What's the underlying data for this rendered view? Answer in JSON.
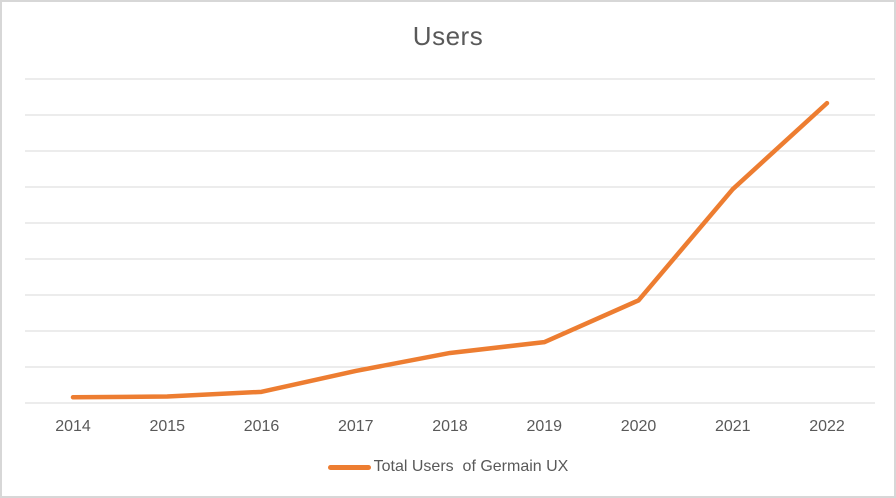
{
  "window": {
    "background": "#ffffff",
    "border_color": "#d7d7d7"
  },
  "chart_data": {
    "type": "line",
    "title": "Users",
    "categories": [
      "2014",
      "2015",
      "2016",
      "2017",
      "2018",
      "2019",
      "2020",
      "2021",
      "2022"
    ],
    "series": [
      {
        "name": "Total Users  of Germain UX",
        "values": [
          0.16,
          0.18,
          0.31,
          0.89,
          1.39,
          1.69,
          2.85,
          5.94,
          8.33
        ],
        "color": "#ED7D31"
      }
    ],
    "xlabel": "",
    "ylabel": "",
    "ylim": [
      0,
      9
    ],
    "y_gridline_interval": 1,
    "y_tick_labels_visible": false,
    "grid": "horizontal",
    "gridline_color": "#D9D9D9",
    "axis_line_color": "#D9D9D9",
    "text_color": "#595959",
    "legend_position": "bottom"
  }
}
